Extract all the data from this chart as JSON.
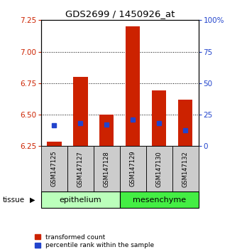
{
  "title": "GDS2699 / 1450926_at",
  "samples": [
    "GSM147125",
    "GSM147127",
    "GSM147128",
    "GSM147129",
    "GSM147130",
    "GSM147132"
  ],
  "red_bar_bottom": 6.25,
  "red_bar_tops": [
    6.285,
    6.8,
    6.5,
    7.2,
    6.69,
    6.62
  ],
  "blue_values": [
    6.415,
    6.435,
    6.42,
    6.46,
    6.435,
    6.375
  ],
  "ylim_left": [
    6.25,
    7.25
  ],
  "ylim_right": [
    0,
    100
  ],
  "yticks_left": [
    6.25,
    6.5,
    6.75,
    7.0,
    7.25
  ],
  "yticks_right": [
    0,
    25,
    50,
    75,
    100
  ],
  "ytick_labels_right": [
    "0",
    "25",
    "50",
    "75",
    "100%"
  ],
  "tissue_groups": [
    {
      "label": "epithelium",
      "indices": [
        0,
        1,
        2
      ],
      "color": "#bbffbb"
    },
    {
      "label": "mesenchyme",
      "indices": [
        3,
        4,
        5
      ],
      "color": "#44ee44"
    }
  ],
  "bar_color": "#cc2200",
  "blue_color": "#2244cc",
  "bar_width": 0.55,
  "blue_marker_size": 5,
  "legend_red_label": "transformed count",
  "legend_blue_label": "percentile rank within the sample",
  "tissue_label": "tissue",
  "left_tick_color": "#cc2200",
  "right_tick_color": "#2244cc",
  "sample_bg_color": "#cccccc",
  "fig_width": 3.41,
  "fig_height": 3.54,
  "dpi": 100
}
